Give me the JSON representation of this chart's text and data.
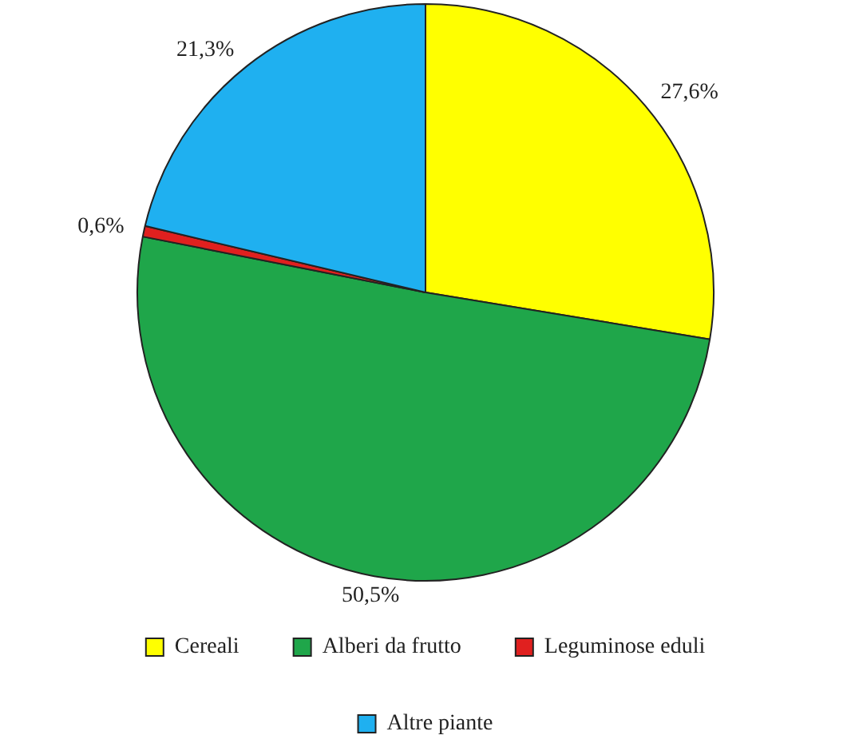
{
  "chart_data": {
    "type": "pie",
    "categories": [
      "Cereali",
      "Alberi da frutto",
      "Leguminose eduli",
      "Altre piante"
    ],
    "values": [
      27.6,
      50.5,
      0.6,
      21.3
    ],
    "colors": [
      "#ffff00",
      "#1fa64a",
      "#e0201f",
      "#1fb0f0"
    ],
    "value_labels": [
      "27,6%",
      "50,5%",
      "0,6%",
      "21,3%"
    ],
    "legend": "bottom"
  }
}
